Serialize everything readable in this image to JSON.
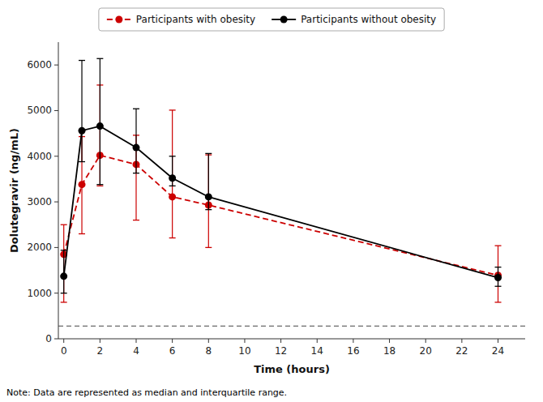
{
  "chart_data": {
    "type": "line",
    "x_label": "Time (hours)",
    "y_label": "Dolutegravir (ng/mL)",
    "x": [
      0,
      1,
      2,
      4,
      6,
      8,
      24
    ],
    "series": [
      {
        "name": "Participants with obesity",
        "color": "#cc0000",
        "line_style": "dashed",
        "marker": "circle",
        "values": [
          1850,
          3380,
          4020,
          3820,
          3110,
          2930,
          1390
        ],
        "error_lower": [
          1050,
          1080,
          670,
          1220,
          900,
          930,
          590
        ],
        "error_upper": [
          650,
          1050,
          1540,
          640,
          1900,
          1100,
          650
        ]
      },
      {
        "name": "Participants without obesity",
        "color": "#000000",
        "line_style": "solid",
        "marker": "circle",
        "values": [
          1370,
          4560,
          4660,
          4190,
          3520,
          3110,
          1340
        ],
        "error_lower": [
          370,
          680,
          1280,
          560,
          170,
          280,
          190
        ],
        "error_upper": [
          570,
          1540,
          1480,
          850,
          480,
          950,
          230
        ]
      }
    ],
    "reference_line_y": 280,
    "xlim": [
      -0.3,
      25.5
    ],
    "ylim": [
      0,
      6500
    ],
    "xticks": [
      0,
      2,
      4,
      6,
      8,
      10,
      12,
      14,
      16,
      18,
      20,
      22,
      24
    ],
    "yticks": [
      0,
      1000,
      2000,
      3000,
      4000,
      5000,
      6000
    ],
    "grid": false,
    "legend": "top",
    "note": "Note: Data are represented as median and interquartile range."
  }
}
